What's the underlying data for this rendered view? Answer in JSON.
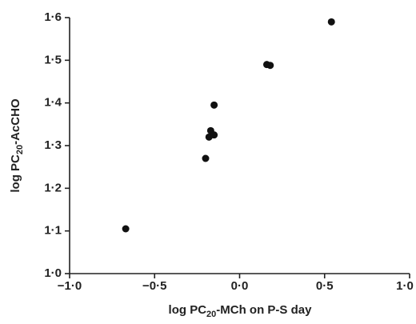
{
  "chart_data": {
    "type": "scatter",
    "xlabel": [
      "log PC",
      "20",
      "-MCh on P-S day"
    ],
    "ylabel": [
      "log PC",
      "20",
      "-AcCHO"
    ],
    "x": [
      -0.67,
      -0.2,
      -0.18,
      -0.17,
      -0.15,
      -0.15,
      0.16,
      0.18,
      0.54
    ],
    "values": [
      1.105,
      1.27,
      1.32,
      1.335,
      1.325,
      1.395,
      1.49,
      1.488,
      1.59
    ],
    "color": "#111111",
    "xlim": [
      -1.0,
      1.0
    ],
    "ylim": [
      1.0,
      1.6
    ],
    "xticks": [
      {
        "value": -1.0,
        "label": "−1·0"
      },
      {
        "value": -0.5,
        "label": "−0·5"
      },
      {
        "value": 0,
        "label": "0·0"
      },
      {
        "value": 0.5,
        "label": "0·5"
      },
      {
        "value": 1.0,
        "label": "1·0"
      }
    ],
    "yticks": [
      {
        "value": 1.0,
        "label": "1·0"
      },
      {
        "value": 1.1,
        "label": "1·1"
      },
      {
        "value": 1.2,
        "label": "1·2"
      },
      {
        "value": 1.3,
        "label": "1·3"
      },
      {
        "value": 1.4,
        "label": "1·4"
      },
      {
        "value": 1.5,
        "label": "1·5"
      },
      {
        "value": 1.6,
        "label": "1·6"
      }
    ],
    "grid": false
  }
}
